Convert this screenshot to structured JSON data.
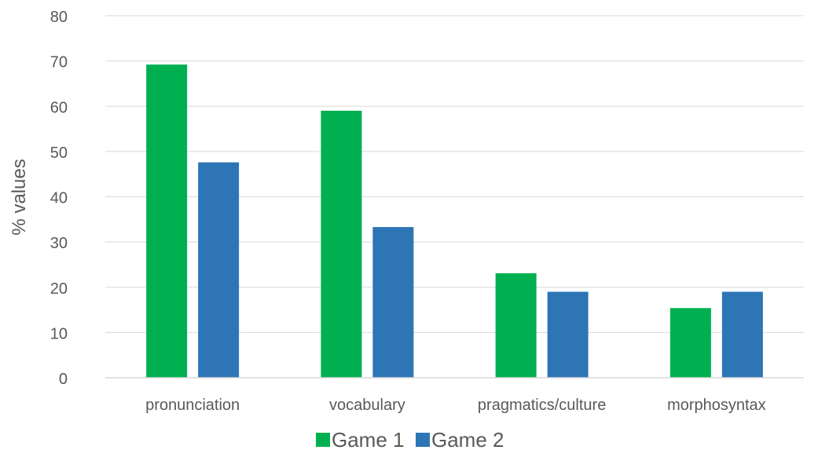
{
  "chart_data": {
    "type": "bar",
    "categories": [
      "pronunciation",
      "vocabulary",
      "pragmatics/culture",
      "morphosyntax"
    ],
    "series": [
      {
        "name": "Game 1",
        "color": "#00b050",
        "values": [
          69.2,
          59.0,
          23.1,
          15.4
        ]
      },
      {
        "name": "Game 2",
        "color": "#2e75b6",
        "values": [
          47.6,
          33.3,
          19.0,
          19.0
        ]
      }
    ],
    "title": "",
    "xlabel": "",
    "ylabel": "% values",
    "ylim": [
      0,
      80
    ],
    "yticks": [
      0,
      10,
      20,
      30,
      40,
      50,
      60,
      70,
      80
    ],
    "grid": true,
    "legend_position": "bottom-center"
  }
}
